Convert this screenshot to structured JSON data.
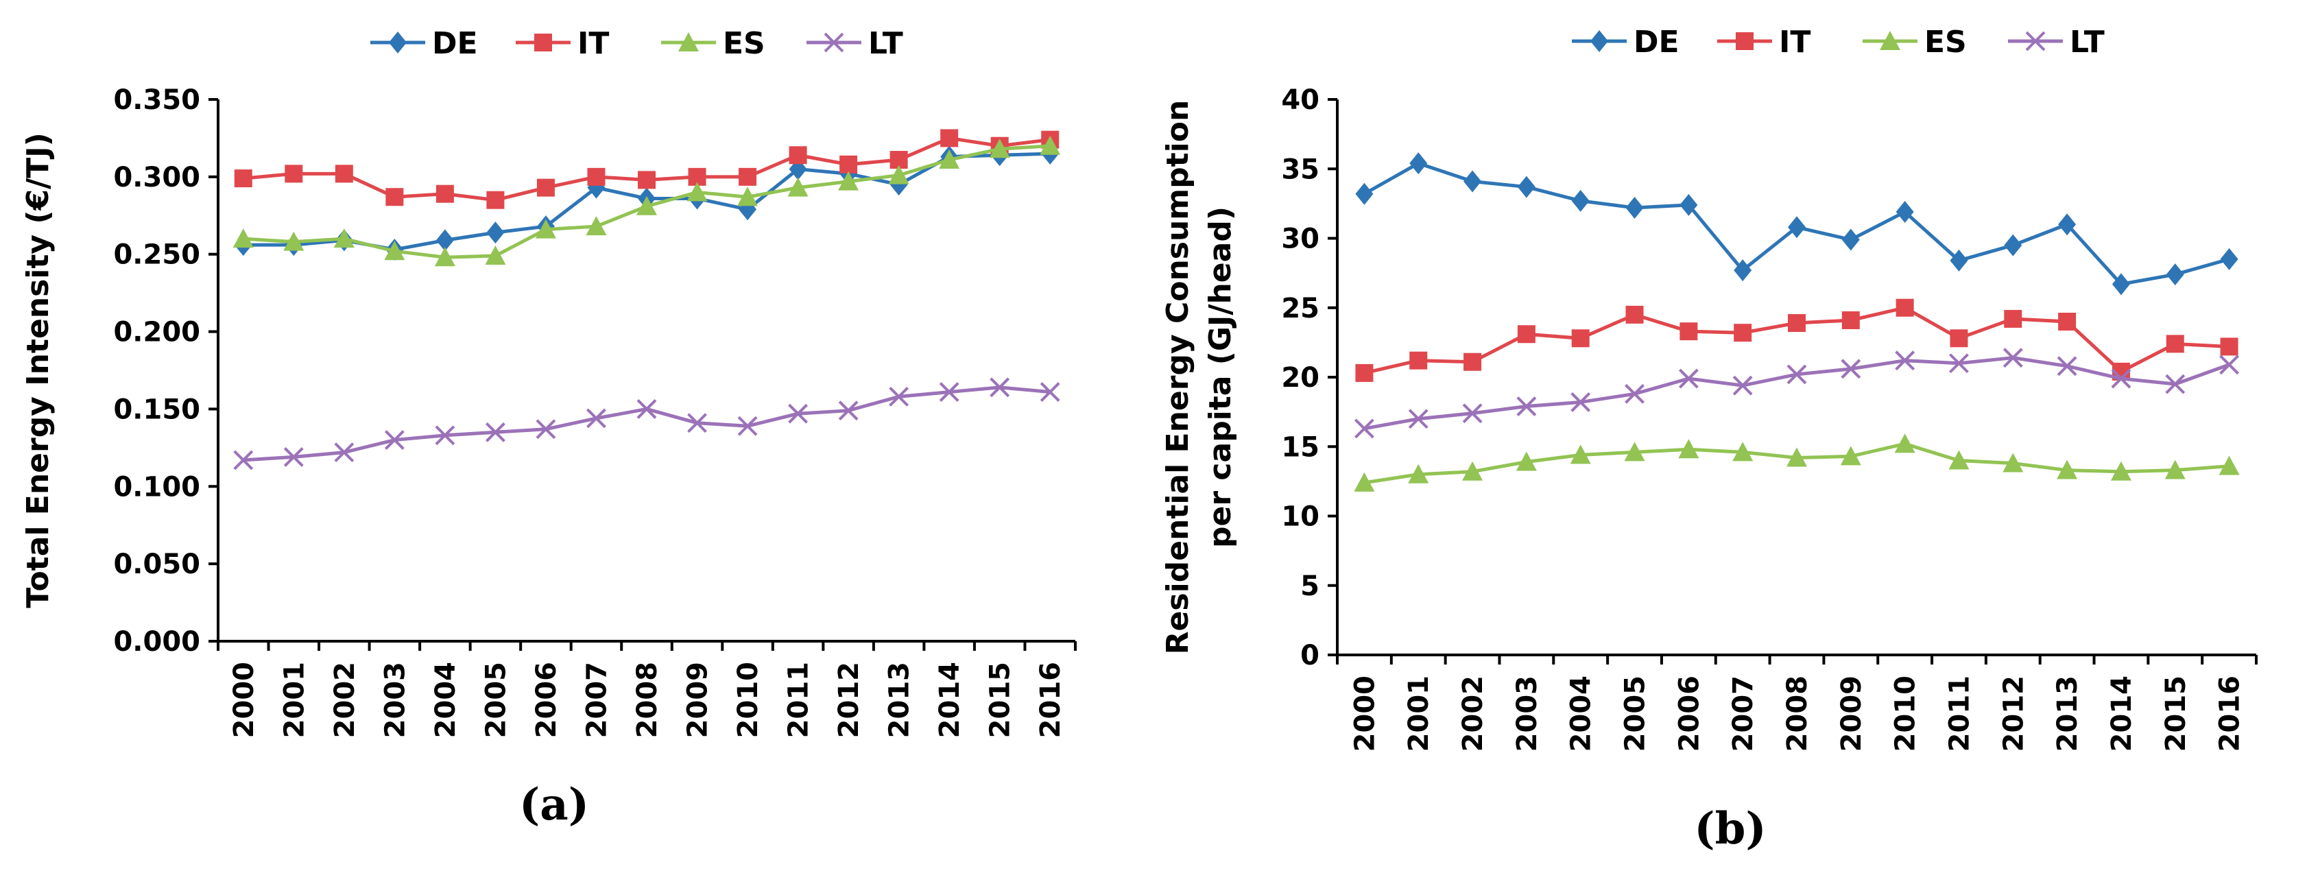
{
  "chart_data": [
    {
      "type": "line",
      "panel_label": "(a)",
      "title": "",
      "xlabel": "",
      "ylabel": "Total Energy Intensity (€/TJ)",
      "ylim": [
        0,
        0.35
      ],
      "yticks": [
        "0.000",
        "0.050",
        "0.100",
        "0.150",
        "0.200",
        "0.250",
        "0.300",
        "0.350"
      ],
      "categories": [
        "2000",
        "2001",
        "2002",
        "2003",
        "2004",
        "2005",
        "2006",
        "2007",
        "2008",
        "2009",
        "2010",
        "2011",
        "2012",
        "2013",
        "2014",
        "2015",
        "2016"
      ],
      "legend_position": "top",
      "series": [
        {
          "name": "DE",
          "color": "#2e75b6",
          "marker": "diamond",
          "values": [
            0.256,
            0.256,
            0.259,
            0.253,
            0.259,
            0.264,
            0.268,
            0.293,
            0.286,
            0.286,
            0.279,
            0.305,
            0.302,
            0.295,
            0.313,
            0.314,
            0.315
          ]
        },
        {
          "name": "IT",
          "color": "#e0474c",
          "marker": "square",
          "values": [
            0.299,
            0.302,
            0.302,
            0.287,
            0.289,
            0.285,
            0.293,
            0.3,
            0.298,
            0.3,
            0.3,
            0.314,
            0.308,
            0.311,
            0.325,
            0.32,
            0.324
          ]
        },
        {
          "name": "ES",
          "color": "#92c353",
          "marker": "triangle",
          "values": [
            0.26,
            0.258,
            0.26,
            0.252,
            0.248,
            0.249,
            0.266,
            0.268,
            0.281,
            0.29,
            0.287,
            0.293,
            0.297,
            0.301,
            0.311,
            0.318,
            0.32
          ]
        },
        {
          "name": "LT",
          "color": "#9b72b8",
          "marker": "x",
          "values": [
            0.117,
            0.119,
            0.122,
            0.13,
            0.133,
            0.135,
            0.137,
            0.144,
            0.15,
            0.141,
            0.139,
            0.147,
            0.149,
            0.158,
            0.161,
            0.164,
            0.161
          ]
        }
      ]
    },
    {
      "type": "line",
      "panel_label": "(b)",
      "title": "",
      "xlabel": "",
      "ylabel": "Residential Energy Consumption",
      "ylabel_line2": "per capita (GJ/head)",
      "ylim": [
        0,
        40
      ],
      "yticks": [
        "0",
        "5",
        "10",
        "15",
        "20",
        "25",
        "30",
        "35",
        "40"
      ],
      "categories": [
        "2000",
        "2001",
        "2002",
        "2003",
        "2004",
        "2005",
        "2006",
        "2007",
        "2008",
        "2009",
        "2010",
        "2011",
        "2012",
        "2013",
        "2014",
        "2015",
        "2016"
      ],
      "legend_position": "top",
      "series": [
        {
          "name": "DE",
          "color": "#2e75b6",
          "marker": "diamond",
          "values": [
            33.2,
            35.4,
            34.1,
            33.7,
            32.7,
            32.2,
            32.4,
            27.7,
            30.8,
            29.9,
            31.9,
            28.4,
            29.5,
            31.0,
            26.7,
            27.4,
            28.5
          ]
        },
        {
          "name": "IT",
          "color": "#e0474c",
          "marker": "square",
          "values": [
            20.3,
            21.2,
            21.1,
            23.1,
            22.8,
            24.5,
            23.3,
            23.2,
            23.9,
            24.1,
            25.0,
            22.8,
            24.2,
            24.0,
            20.4,
            22.4,
            22.2
          ]
        },
        {
          "name": "ES",
          "color": "#92c353",
          "marker": "triangle",
          "values": [
            12.4,
            13.0,
            13.2,
            13.9,
            14.4,
            14.6,
            14.8,
            14.6,
            14.2,
            14.3,
            15.2,
            14.0,
            13.8,
            13.3,
            13.2,
            13.3,
            13.6
          ]
        },
        {
          "name": "LT",
          "color": "#9b72b8",
          "marker": "x",
          "values": [
            16.3,
            17.0,
            17.4,
            17.9,
            18.2,
            18.8,
            19.9,
            19.4,
            20.2,
            20.6,
            21.2,
            21.0,
            21.4,
            20.8,
            19.9,
            19.5,
            20.9
          ]
        }
      ]
    }
  ]
}
